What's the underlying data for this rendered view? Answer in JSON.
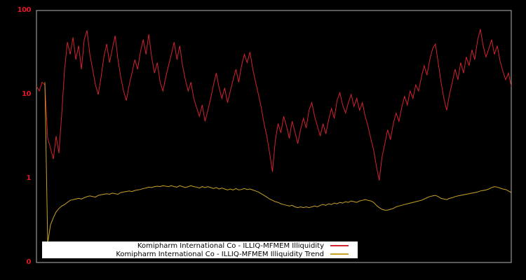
{
  "chart_data": {
    "type": "line",
    "title": "",
    "background": "#000000",
    "colors": {
      "axis_border": "#b3b3b3",
      "tick_label": "#e01a29",
      "legend_background": "#ffffff",
      "legend_text": "#000000"
    },
    "y_axis": {
      "scale": "log",
      "min": 0.1,
      "max": 100,
      "ticks": [
        {
          "label": "100",
          "value": 100
        },
        {
          "label": "10",
          "value": 10
        },
        {
          "label": "1",
          "value": 1
        },
        {
          "label": "0",
          "value": 0.1
        }
      ]
    },
    "x_axis": {
      "tick_labels": []
    },
    "legend": {
      "position": "lower-center"
    },
    "series": [
      {
        "name": "Komipharm International Co - ILLIQ-MFMEM Illiquidity",
        "color": "#d2232e",
        "values": [
          12.5,
          11.0,
          14.0,
          13.0,
          3.0,
          2.3,
          1.7,
          3.2,
          2.0,
          6.0,
          20,
          42,
          30,
          48,
          26,
          38,
          20,
          45,
          58,
          30,
          20,
          13,
          10,
          16,
          28,
          40,
          24,
          35,
          50,
          26,
          16,
          11,
          8.5,
          13,
          18,
          26,
          20,
          32,
          45,
          30,
          52,
          28,
          18,
          24,
          14,
          11,
          16,
          22,
          30,
          42,
          26,
          38,
          22,
          15,
          11,
          14,
          9,
          7,
          5.5,
          7.5,
          4.8,
          6.5,
          9,
          13,
          18,
          12,
          9,
          12,
          8,
          11,
          15,
          20,
          14,
          22,
          30,
          24,
          32,
          20,
          14,
          10,
          7,
          4.5,
          3.2,
          2.0,
          1.2,
          2.8,
          4.5,
          3.5,
          5.5,
          4.2,
          3.0,
          4.8,
          3.6,
          2.6,
          3.8,
          5.2,
          4.0,
          6.5,
          8.0,
          5.5,
          4.2,
          3.2,
          4.5,
          3.4,
          5.0,
          6.8,
          5.2,
          8.5,
          10.5,
          7.5,
          6.0,
          8.0,
          10.0,
          7.2,
          9.0,
          6.5,
          8.0,
          5.5,
          4.2,
          3.0,
          2.2,
          1.4,
          0.95,
          1.8,
          2.6,
          3.8,
          2.9,
          4.5,
          6.0,
          4.8,
          7.0,
          9.5,
          7.5,
          11,
          9,
          13,
          11,
          16,
          22,
          17,
          26,
          35,
          40,
          24,
          14,
          9,
          6.5,
          10,
          14,
          20,
          15,
          24,
          18,
          28,
          22,
          34,
          26,
          44,
          60,
          38,
          28,
          35,
          45,
          30,
          38,
          25,
          19,
          15,
          18,
          12.5
        ]
      },
      {
        "name": "Komipharm International Co - ILLIQ-MFMEM Illiquidity Trend",
        "color": "#c9a227",
        "values": [
          null,
          null,
          null,
          14.0,
          0.17,
          0.28,
          0.34,
          0.4,
          0.44,
          0.47,
          0.49,
          0.52,
          0.55,
          0.56,
          0.57,
          0.58,
          0.57,
          0.59,
          0.61,
          0.62,
          0.61,
          0.6,
          0.63,
          0.64,
          0.65,
          0.66,
          0.65,
          0.67,
          0.66,
          0.65,
          0.68,
          0.69,
          0.7,
          0.71,
          0.7,
          0.72,
          0.73,
          0.74,
          0.76,
          0.77,
          0.79,
          0.78,
          0.8,
          0.81,
          0.8,
          0.82,
          0.81,
          0.8,
          0.82,
          0.8,
          0.79,
          0.82,
          0.8,
          0.78,
          0.8,
          0.82,
          0.8,
          0.79,
          0.77,
          0.8,
          0.78,
          0.8,
          0.78,
          0.76,
          0.78,
          0.75,
          0.77,
          0.75,
          0.73,
          0.75,
          0.73,
          0.76,
          0.73,
          0.74,
          0.76,
          0.74,
          0.75,
          0.73,
          0.71,
          0.69,
          0.66,
          0.63,
          0.6,
          0.57,
          0.55,
          0.53,
          0.52,
          0.5,
          0.49,
          0.48,
          0.47,
          0.48,
          0.46,
          0.45,
          0.46,
          0.45,
          0.46,
          0.45,
          0.46,
          0.47,
          0.46,
          0.48,
          0.49,
          0.48,
          0.5,
          0.49,
          0.51,
          0.5,
          0.52,
          0.51,
          0.53,
          0.52,
          0.54,
          0.53,
          0.52,
          0.54,
          0.55,
          0.56,
          0.55,
          0.54,
          0.52,
          0.48,
          0.45,
          0.43,
          0.42,
          0.42,
          0.43,
          0.44,
          0.46,
          0.47,
          0.48,
          0.49,
          0.5,
          0.51,
          0.52,
          0.53,
          0.54,
          0.55,
          0.57,
          0.59,
          0.61,
          0.62,
          0.63,
          0.61,
          0.58,
          0.57,
          0.56,
          0.58,
          0.59,
          0.61,
          0.62,
          0.63,
          0.64,
          0.65,
          0.66,
          0.67,
          0.68,
          0.69,
          0.71,
          0.72,
          0.73,
          0.75,
          0.78,
          0.8,
          0.79,
          0.77,
          0.75,
          0.74,
          0.71,
          0.68
        ]
      }
    ]
  }
}
